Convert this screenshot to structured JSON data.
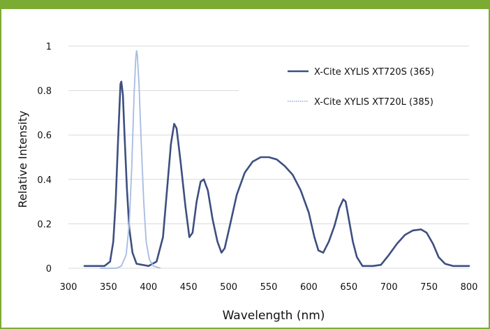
{
  "header": {
    "title": ""
  },
  "colors": {
    "header_bar": "#7cab33",
    "series_365": "#3d4f80",
    "series_385": "#a9bde2",
    "gridline": "#d9d9d9"
  },
  "chart_data": {
    "type": "line",
    "title": "",
    "xlabel": "Wavelength (nm)",
    "ylabel": "Relative Intensity",
    "xlim": [
      300,
      800
    ],
    "ylim": [
      0,
      1
    ],
    "x_ticks": [
      "300",
      "350",
      "400",
      "450",
      "500",
      "550",
      "600",
      "650",
      "700",
      "750",
      "800"
    ],
    "y_ticks": [
      "0",
      "0.2",
      "0.4",
      "0.6",
      "0.8",
      "1"
    ],
    "legend": {
      "placement": "top-right"
    },
    "series": [
      {
        "name": "X-Cite XYLIS XT720S (365)",
        "style": "solid",
        "points": [
          [
            320,
            0.01
          ],
          [
            345,
            0.01
          ],
          [
            352,
            0.03
          ],
          [
            356,
            0.12
          ],
          [
            359,
            0.3
          ],
          [
            362,
            0.58
          ],
          [
            364,
            0.75
          ],
          [
            365,
            0.83
          ],
          [
            366,
            0.84
          ],
          [
            368,
            0.78
          ],
          [
            370,
            0.6
          ],
          [
            373,
            0.36
          ],
          [
            376,
            0.18
          ],
          [
            380,
            0.07
          ],
          [
            385,
            0.02
          ],
          [
            400,
            0.01
          ],
          [
            410,
            0.03
          ],
          [
            418,
            0.14
          ],
          [
            423,
            0.35
          ],
          [
            428,
            0.56
          ],
          [
            432,
            0.65
          ],
          [
            435,
            0.63
          ],
          [
            440,
            0.48
          ],
          [
            446,
            0.28
          ],
          [
            451,
            0.14
          ],
          [
            455,
            0.16
          ],
          [
            460,
            0.3
          ],
          [
            465,
            0.39
          ],
          [
            469,
            0.4
          ],
          [
            474,
            0.35
          ],
          [
            480,
            0.22
          ],
          [
            486,
            0.12
          ],
          [
            491,
            0.07
          ],
          [
            495,
            0.09
          ],
          [
            502,
            0.2
          ],
          [
            510,
            0.33
          ],
          [
            520,
            0.43
          ],
          [
            530,
            0.48
          ],
          [
            540,
            0.5
          ],
          [
            550,
            0.5
          ],
          [
            560,
            0.49
          ],
          [
            570,
            0.46
          ],
          [
            580,
            0.42
          ],
          [
            590,
            0.35
          ],
          [
            600,
            0.25
          ],
          [
            607,
            0.14
          ],
          [
            612,
            0.08
          ],
          [
            618,
            0.07
          ],
          [
            625,
            0.12
          ],
          [
            632,
            0.19
          ],
          [
            638,
            0.27
          ],
          [
            643,
            0.31
          ],
          [
            646,
            0.3
          ],
          [
            650,
            0.22
          ],
          [
            655,
            0.12
          ],
          [
            660,
            0.05
          ],
          [
            667,
            0.01
          ],
          [
            680,
            0.01
          ],
          [
            690,
            0.015
          ],
          [
            700,
            0.06
          ],
          [
            710,
            0.11
          ],
          [
            720,
            0.15
          ],
          [
            730,
            0.17
          ],
          [
            740,
            0.175
          ],
          [
            747,
            0.16
          ],
          [
            755,
            0.11
          ],
          [
            762,
            0.05
          ],
          [
            770,
            0.02
          ],
          [
            780,
            0.01
          ],
          [
            800,
            0.01
          ]
        ]
      },
      {
        "name": "X-Cite XYLIS XT720L (385)",
        "style": "dotted",
        "points": [
          [
            340,
            0.0
          ],
          [
            360,
            0.0
          ],
          [
            366,
            0.01
          ],
          [
            372,
            0.06
          ],
          [
            376,
            0.2
          ],
          [
            379,
            0.45
          ],
          [
            382,
            0.78
          ],
          [
            384,
            0.94
          ],
          [
            385,
            0.98
          ],
          [
            386,
            0.96
          ],
          [
            388,
            0.84
          ],
          [
            391,
            0.55
          ],
          [
            394,
            0.3
          ],
          [
            397,
            0.12
          ],
          [
            401,
            0.04
          ],
          [
            406,
            0.01
          ],
          [
            415,
            0.0
          ]
        ]
      }
    ]
  }
}
